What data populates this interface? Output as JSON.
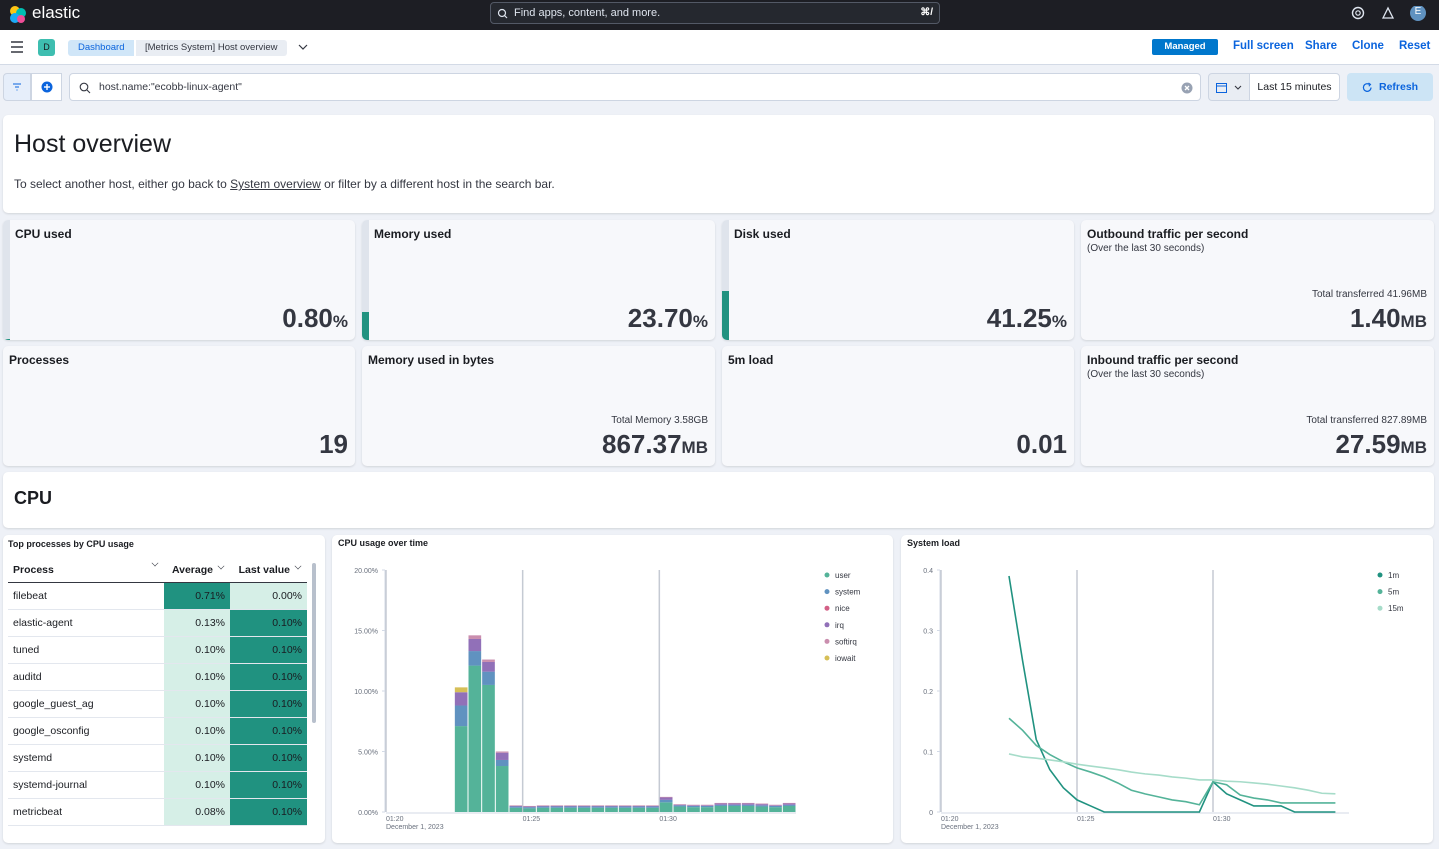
{
  "header": {
    "brand": "elastic",
    "search_placeholder": "Find apps, content, and more.",
    "search_shortcut": "⌘/",
    "avatar": "E"
  },
  "nav": {
    "space": "D",
    "breadcrumbs": [
      "Dashboard",
      "[Metrics System] Host overview"
    ],
    "managed": "Managed",
    "actions": [
      "Full screen",
      "Share",
      "Clone",
      "Reset"
    ]
  },
  "query": {
    "text": "host.name:\"ecobb-linux-agent\"",
    "time": "Last 15 minutes",
    "refresh": "Refresh"
  },
  "intro": {
    "title": "Host overview",
    "text_before": "To select another host, either go back to ",
    "link": "System overview",
    "text_after": " or filter by a different host in the search bar."
  },
  "metrics": [
    {
      "label": "CPU used",
      "value": "0.80",
      "unit": "%",
      "gauge": true
    },
    {
      "label": "Memory used",
      "value": "23.70",
      "unit": "%",
      "gauge": true
    },
    {
      "label": "Disk used",
      "value": "41.25",
      "unit": "%",
      "gauge": true
    },
    {
      "label": "Outbound traffic per second",
      "sublabel": "(Over the last 30 seconds)",
      "detail": "Total transferred 41.96MB",
      "value": "1.40",
      "unit": "MB"
    },
    {
      "label": "Processes",
      "value": "19"
    },
    {
      "label": "Memory used in bytes",
      "detail": "Total Memory 3.58GB",
      "value": "867.37",
      "unit": "MB"
    },
    {
      "label": "5m load",
      "value": "0.01"
    },
    {
      "label": "Inbound traffic per second",
      "sublabel": "(Over the last 30 seconds)",
      "detail": "Total transferred 827.89MB",
      "value": "27.59",
      "unit": "MB"
    }
  ],
  "section": {
    "title": "CPU"
  },
  "process_table": {
    "title": "Top processes by CPU usage",
    "columns": [
      "Process",
      "Average",
      "Last value"
    ],
    "rows": [
      [
        "filebeat",
        "0.71%",
        "0.00%"
      ],
      [
        "elastic-agent",
        "0.13%",
        "0.10%"
      ],
      [
        "tuned",
        "0.10%",
        "0.10%"
      ],
      [
        "auditd",
        "0.10%",
        "0.10%"
      ],
      [
        "google_guest_ag",
        "0.10%",
        "0.10%"
      ],
      [
        "google_osconfig",
        "0.10%",
        "0.10%"
      ],
      [
        "systemd",
        "0.10%",
        "0.10%"
      ],
      [
        "systemd-journal",
        "0.10%",
        "0.10%"
      ],
      [
        "metricbeat",
        "0.08%",
        "0.10%"
      ]
    ]
  },
  "chart_data": [
    {
      "type": "bar",
      "stacked": true,
      "title": "CPU usage over time",
      "x": [
        22.5,
        23,
        23.5,
        24,
        24.5,
        25,
        25.5,
        26,
        26.5,
        27,
        27.5,
        28,
        28.5,
        29,
        29.5,
        30,
        30.5,
        31,
        31.5,
        32,
        32.5,
        33,
        33.5,
        34,
        34.5
      ],
      "xlim": [
        20,
        35
      ],
      "xticks": [
        {
          "value": 20,
          "label": "01:20"
        },
        {
          "value": 25,
          "label": "01:25"
        },
        {
          "value": 30,
          "label": "01:30"
        }
      ],
      "x_sublabel": "December 1, 2023",
      "ylim": [
        0,
        20
      ],
      "yticks": [
        {
          "value": 0,
          "label": "0.00%"
        },
        {
          "value": 5,
          "label": "5.00%"
        },
        {
          "value": 10,
          "label": "10.00%"
        },
        {
          "value": 15,
          "label": "15.00%"
        },
        {
          "value": 20,
          "label": "20.00%"
        }
      ],
      "grid": true,
      "legend": "top-right",
      "series": [
        {
          "name": "user",
          "color": "#54b399",
          "values": [
            7.1,
            12.1,
            10.5,
            3.8,
            0.35,
            0.3,
            0.35,
            0.35,
            0.35,
            0.35,
            0.35,
            0.35,
            0.35,
            0.35,
            0.35,
            0.8,
            0.45,
            0.4,
            0.4,
            0.5,
            0.5,
            0.5,
            0.45,
            0.4,
            0.5
          ]
        },
        {
          "name": "system",
          "color": "#6092c0",
          "values": [
            1.7,
            1.2,
            1.1,
            0.5,
            0.1,
            0.1,
            0.1,
            0.1,
            0.1,
            0.1,
            0.1,
            0.1,
            0.1,
            0.1,
            0.1,
            0.2,
            0.1,
            0.1,
            0.1,
            0.1,
            0.1,
            0.1,
            0.1,
            0.1,
            0.1
          ]
        },
        {
          "name": "nice",
          "color": "#d36086",
          "values": [
            0,
            0,
            0,
            0,
            0,
            0,
            0,
            0,
            0,
            0,
            0,
            0,
            0,
            0,
            0,
            0,
            0,
            0,
            0,
            0,
            0,
            0,
            0,
            0,
            0
          ]
        },
        {
          "name": "irq",
          "color": "#9170b8",
          "values": [
            1.1,
            1.0,
            0.8,
            0.6,
            0.05,
            0.05,
            0.05,
            0.05,
            0.05,
            0.05,
            0.05,
            0.05,
            0.05,
            0.05,
            0.05,
            0.2,
            0.05,
            0.05,
            0.05,
            0.1,
            0.1,
            0.1,
            0.1,
            0.05,
            0.1
          ]
        },
        {
          "name": "softirq",
          "color": "#ca8eae",
          "values": [
            0,
            0.3,
            0.2,
            0.1,
            0.05,
            0.05,
            0.05,
            0.05,
            0.05,
            0.05,
            0.05,
            0.05,
            0.05,
            0.05,
            0.05,
            0.05,
            0.05,
            0.05,
            0.05,
            0.05,
            0.05,
            0.05,
            0.05,
            0.05,
            0.05
          ]
        },
        {
          "name": "iowait",
          "color": "#d6bf57",
          "values": [
            0.4,
            0,
            0,
            0,
            0,
            0,
            0,
            0,
            0,
            0,
            0,
            0,
            0,
            0,
            0,
            0,
            0,
            0,
            0,
            0,
            0,
            0,
            0,
            0,
            0
          ]
        }
      ]
    },
    {
      "type": "line",
      "title": "System load",
      "x": [
        22.5,
        23,
        23.5,
        24,
        24.5,
        25,
        25.5,
        26,
        26.5,
        27,
        27.5,
        28,
        28.5,
        29,
        29.5,
        30,
        30.5,
        31,
        31.5,
        32,
        32.5,
        33,
        33.5,
        34,
        34.5
      ],
      "xlim": [
        20,
        35
      ],
      "xticks": [
        {
          "value": 20,
          "label": "01:20"
        },
        {
          "value": 25,
          "label": "01:25"
        },
        {
          "value": 30,
          "label": "01:30"
        }
      ],
      "x_sublabel": "December 1, 2023",
      "ylim": [
        0,
        0.4
      ],
      "yticks": [
        0,
        0.1,
        0.2,
        0.3,
        0.4
      ],
      "grid": true,
      "legend": "top-right",
      "series": [
        {
          "name": "1m",
          "color": "#209280",
          "values": [
            0.39,
            0.25,
            0.12,
            0.07,
            0.04,
            0.02,
            0.01,
            0,
            0,
            0,
            0,
            0,
            0,
            0,
            0,
            0.05,
            0.03,
            0.02,
            0.01,
            0.01,
            0.01,
            0,
            0,
            0,
            0
          ]
        },
        {
          "name": "5m",
          "color": "#54b399",
          "values": [
            0.155,
            0.135,
            0.11,
            0.095,
            0.083,
            0.073,
            0.066,
            0.058,
            0.048,
            0.036,
            0.03,
            0.025,
            0.02,
            0.017,
            0.012,
            0.05,
            0.045,
            0.028,
            0.023,
            0.02,
            0.015,
            0.015,
            0.015,
            0.015,
            0.015
          ]
        },
        {
          "name": "15m",
          "color": "#a6dcc9",
          "values": [
            0.096,
            0.091,
            0.089,
            0.086,
            0.083,
            0.079,
            0.076,
            0.073,
            0.07,
            0.066,
            0.063,
            0.061,
            0.058,
            0.056,
            0.053,
            0.053,
            0.051,
            0.05,
            0.048,
            0.046,
            0.043,
            0.04,
            0.036,
            0.031,
            0.03
          ]
        }
      ]
    }
  ]
}
